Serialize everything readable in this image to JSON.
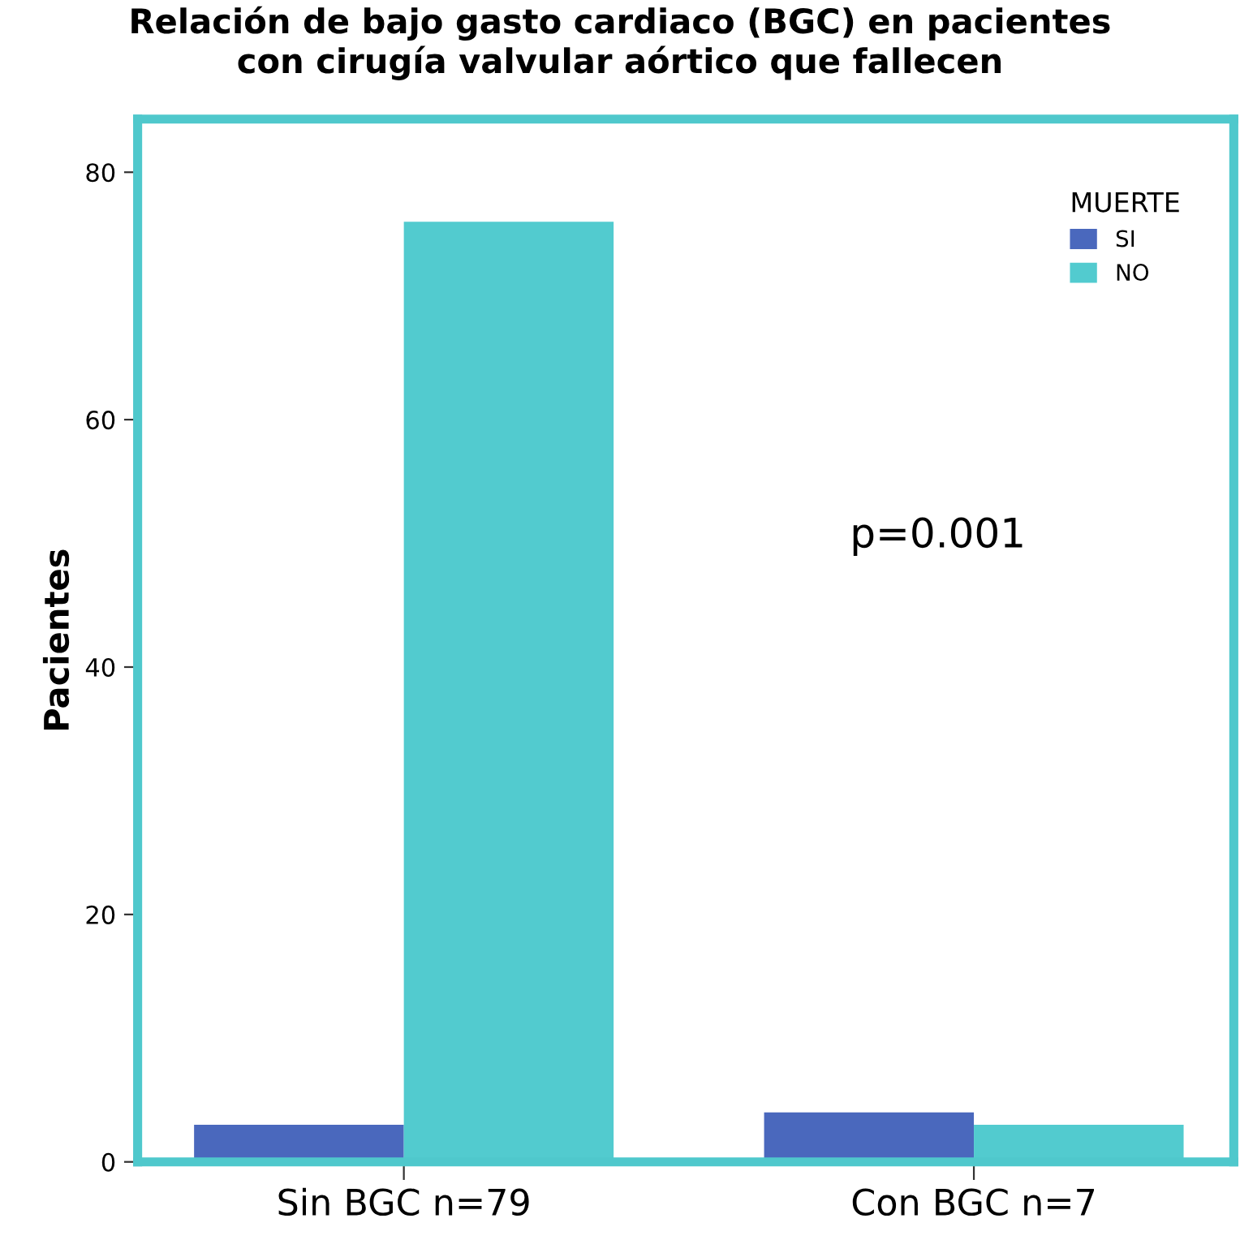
{
  "chart_data": {
    "type": "bar",
    "title": "Relación de bajo gasto cardiaco (BGC) en pacientes\ncon cirugía valvular aórtico que fallecen",
    "ylabel": "Pacientes",
    "categories": [
      "Sin BGC n=79",
      "Con BGC n=7"
    ],
    "series": [
      {
        "name": "SI",
        "color": "#4a68bd",
        "values": [
          3,
          4
        ]
      },
      {
        "name": "NO",
        "color": "#52cbcf",
        "values": [
          76,
          3
        ]
      }
    ],
    "legend_title": "MUERTE",
    "legend": "top right",
    "ylim": [
      0,
      84.3
    ],
    "yticks": [
      0,
      20,
      40,
      60,
      80
    ],
    "grid": false,
    "annotations": [
      "p=0.001"
    ]
  }
}
